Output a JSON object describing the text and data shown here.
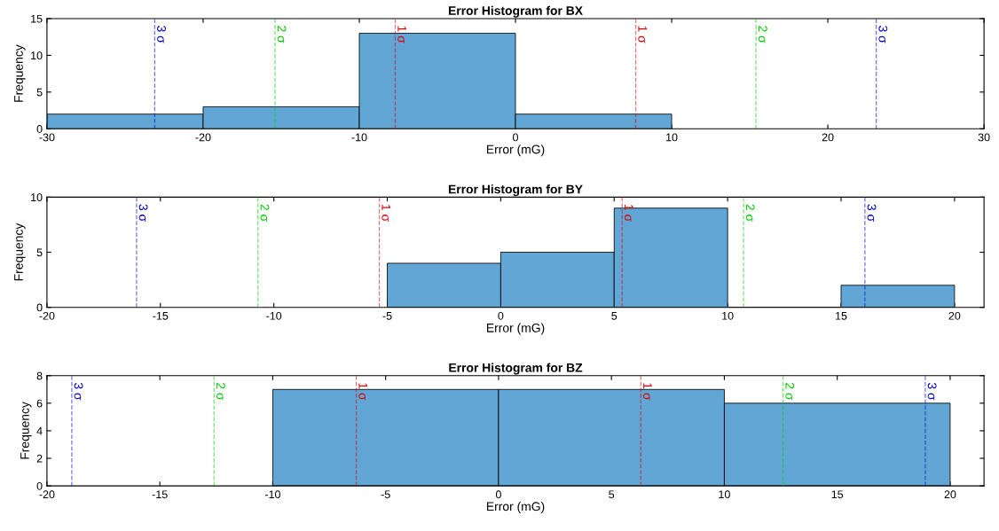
{
  "chart_data": [
    {
      "type": "histogram",
      "title": "Error Histogram for BX",
      "xlabel": "Error (mG)",
      "ylabel": "Frequency",
      "bins": [
        -30,
        -20,
        -10,
        0,
        10
      ],
      "values": [
        2,
        3,
        13,
        2
      ],
      "color": "#62a6d6",
      "xlim": [
        -30,
        30
      ],
      "xticks": [
        -30,
        -20,
        -10,
        0,
        10,
        20,
        30
      ],
      "ylim": [
        0,
        15
      ],
      "yticks": [
        0,
        5,
        10,
        15
      ],
      "ref_lines": [
        {
          "axis": "x",
          "value": -23.1,
          "label": "3 σ",
          "color": "#0000cc",
          "line_style": "dashed"
        },
        {
          "axis": "x",
          "value": -15.4,
          "label": "2 σ",
          "color": "#00cc00",
          "line_style": "dashed"
        },
        {
          "axis": "x",
          "value": -7.7,
          "label": "1 σ",
          "color": "#dd0000",
          "line_style": "dashed"
        },
        {
          "axis": "x",
          "value": 7.7,
          "label": "1 σ",
          "color": "#dd0000",
          "line_style": "dashed"
        },
        {
          "axis": "x",
          "value": 15.4,
          "label": "2 σ",
          "color": "#00cc00",
          "line_style": "dashed"
        },
        {
          "axis": "x",
          "value": 23.1,
          "label": "3 σ",
          "color": "#0000cc",
          "line_style": "dashed"
        }
      ]
    },
    {
      "type": "histogram",
      "title": "Error Histogram for BY",
      "xlabel": "Error (mG)",
      "ylabel": "Frequency",
      "bins": [
        -5,
        0,
        5,
        10,
        15,
        20
      ],
      "values": [
        4,
        5,
        9,
        0,
        2
      ],
      "color": "#62a6d6",
      "xlim": [
        -20,
        21.3
      ],
      "xticks": [
        -20,
        -15,
        -10,
        -5,
        0,
        5,
        10,
        15,
        20
      ],
      "ylim": [
        0,
        10
      ],
      "yticks": [
        0,
        5,
        10
      ],
      "ref_lines": [
        {
          "axis": "x",
          "value": -16.05,
          "label": "3 σ",
          "color": "#0000cc",
          "line_style": "dashed"
        },
        {
          "axis": "x",
          "value": -10.7,
          "label": "2 σ",
          "color": "#00cc00",
          "line_style": "dashed"
        },
        {
          "axis": "x",
          "value": -5.35,
          "label": "1 σ",
          "color": "#dd0000",
          "line_style": "dashed"
        },
        {
          "axis": "x",
          "value": 5.35,
          "label": "1 σ",
          "color": "#dd0000",
          "line_style": "dashed"
        },
        {
          "axis": "x",
          "value": 10.7,
          "label": "2 σ",
          "color": "#00cc00",
          "line_style": "dashed"
        },
        {
          "axis": "x",
          "value": 16.05,
          "label": "3 σ",
          "color": "#0000cc",
          "line_style": "dashed"
        }
      ]
    },
    {
      "type": "histogram",
      "title": "Error Histogram for BZ",
      "xlabel": "Error (mG)",
      "ylabel": "Frequency",
      "bins": [
        -10,
        0,
        10,
        20
      ],
      "values": [
        7,
        7,
        6
      ],
      "color": "#62a6d6",
      "xlim": [
        -20,
        21.5
      ],
      "xticks": [
        -20,
        -15,
        -10,
        -5,
        0,
        5,
        10,
        15,
        20
      ],
      "ylim": [
        0,
        8
      ],
      "yticks": [
        0,
        2,
        4,
        6,
        8
      ],
      "ref_lines": [
        {
          "axis": "x",
          "value": -18.9,
          "label": "3 σ",
          "color": "#0000cc",
          "line_style": "dashed"
        },
        {
          "axis": "x",
          "value": -12.6,
          "label": "2 σ",
          "color": "#00cc00",
          "line_style": "dashed"
        },
        {
          "axis": "x",
          "value": -6.3,
          "label": "1 σ",
          "color": "#dd0000",
          "line_style": "dashed"
        },
        {
          "axis": "x",
          "value": 6.3,
          "label": "1 σ",
          "color": "#dd0000",
          "line_style": "dashed"
        },
        {
          "axis": "x",
          "value": 12.6,
          "label": "2 σ",
          "color": "#00cc00",
          "line_style": "dashed"
        },
        {
          "axis": "x",
          "value": 18.9,
          "label": "3 σ",
          "color": "#0000cc",
          "line_style": "dashed"
        }
      ]
    }
  ]
}
